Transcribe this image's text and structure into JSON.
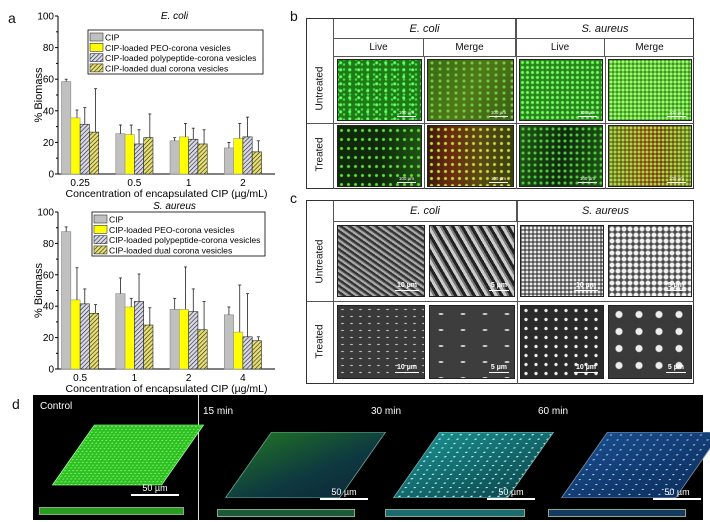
{
  "panel_labels": {
    "a": "a",
    "b": "b",
    "c": "c",
    "d": "d"
  },
  "chart_data": [
    {
      "type": "bar",
      "title": "E. coli",
      "xlabel": "Concentration  of encapsulated  CIP (µg/mL)",
      "ylabel": "% Biomass",
      "ylim": [
        0,
        100
      ],
      "yticks": [
        "0",
        "20",
        "40",
        "60",
        "80",
        "100"
      ],
      "categories": [
        "0.25",
        "0.5",
        "1",
        "2"
      ],
      "legend": [
        "CIP",
        "CIP-loaded PEO-corona vesicles",
        "CIP-loaded polypeptide-corona vesicles",
        "CIP-loaded dual corona vesicles"
      ],
      "legend_position": "top-right",
      "series": [
        {
          "name": "CIP",
          "values": [
            58.5,
            25.5,
            21,
            16.5
          ],
          "errors": [
            1.5,
            5.5,
            2,
            3.5
          ],
          "color": "#c0c0c0",
          "hatch": false
        },
        {
          "name": "CIP-loaded PEO-corona vesicles",
          "values": [
            35.5,
            25,
            23.5,
            22.5
          ],
          "errors": [
            5,
            6,
            8.5,
            9.5
          ],
          "color": "#ffff00",
          "hatch": false
        },
        {
          "name": "CIP-loaded polypeptide-corona vesicles",
          "values": [
            31.5,
            19,
            22,
            23.5
          ],
          "errors": [
            10.5,
            9,
            7,
            12.5
          ],
          "color": "#d8d8e8",
          "hatch": true
        },
        {
          "name": "CIP-loaded dual corona vesicles",
          "values": [
            26.5,
            23,
            19,
            14
          ],
          "errors": [
            27.5,
            15,
            9,
            7
          ],
          "color": "#e8e070",
          "hatch": true
        }
      ]
    },
    {
      "type": "bar",
      "title": "S. aureus",
      "xlabel": "Concentration  of encapsulated  CIP (µg/mL)",
      "ylabel": "% Biomass",
      "ylim": [
        0,
        100
      ],
      "yticks": [
        "0",
        "20",
        "40",
        "60",
        "80",
        "100"
      ],
      "categories": [
        "0.5",
        "1",
        "2",
        "4"
      ],
      "legend": [
        "CIP",
        "CIP-loaded PEO-corona vesicles",
        "CIP-loaded polypeptide-corona vesicles",
        "CIP-loaded dual corona vesicles"
      ],
      "legend_position": "top-right",
      "series": [
        {
          "name": "CIP",
          "values": [
            87.5,
            48,
            38,
            34.5
          ],
          "errors": [
            3,
            10,
            7,
            5
          ],
          "color": "#c0c0c0",
          "hatch": false
        },
        {
          "name": "CIP-loaded PEO-corona vesicles",
          "values": [
            44,
            39.5,
            38,
            23.5
          ],
          "errors": [
            20.5,
            5.5,
            27,
            30
          ],
          "color": "#ffff00",
          "hatch": false
        },
        {
          "name": "CIP-loaded polypeptide-corona vesicles",
          "values": [
            41.5,
            43,
            36.5,
            20.5
          ],
          "errors": [
            9.5,
            17.5,
            14.5,
            27.5
          ],
          "color": "#d8d8e8",
          "hatch": true
        },
        {
          "name": "CIP-loaded dual corona vesicles",
          "values": [
            35.5,
            28,
            25,
            18
          ],
          "errors": [
            5.5,
            11,
            18,
            2.5
          ],
          "color": "#e8e070",
          "hatch": true
        }
      ]
    }
  ],
  "panel_b": {
    "species": [
      "E. coli",
      "S. aureus"
    ],
    "columns": [
      "Live",
      "Merge",
      "Live",
      "Merge"
    ],
    "rows": [
      "Untreated",
      "Treated"
    ],
    "scale_bar": "100 µm"
  },
  "panel_c": {
    "species": [
      "E. coli",
      "S. aureus"
    ],
    "rows": [
      "Untreated",
      "Treated"
    ],
    "scale_bars": [
      "10 µm",
      "5 µm",
      "10 µm",
      "5 µm"
    ]
  },
  "panel_d": {
    "labels": [
      "Control",
      "15 min",
      "30 min",
      "60 min"
    ],
    "scale_bar": "50 µm",
    "colors": [
      "#3ccf2a",
      "#1e7a4a",
      "#2fa8a0",
      "#2a6aa8"
    ]
  }
}
